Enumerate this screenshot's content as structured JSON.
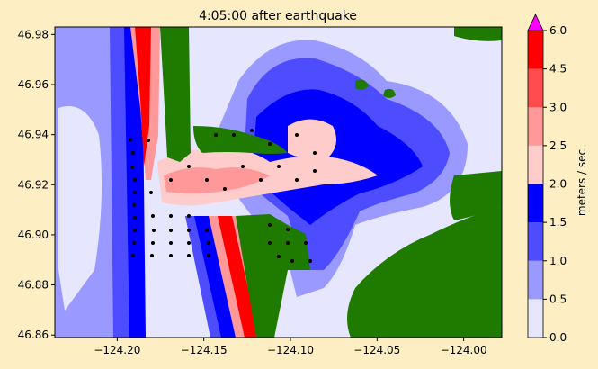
{
  "chart_data": {
    "type": "heatmap",
    "title": "4:05:00 after earthquake",
    "x_ticks": [
      -124.2,
      -124.15,
      -124.1,
      -124.05,
      -124.0
    ],
    "x_tick_labels": [
      "−124.20",
      "−124.15",
      "−124.10",
      "−124.05",
      "−124.00"
    ],
    "y_ticks": [
      46.86,
      46.88,
      46.9,
      46.92,
      46.94,
      46.96,
      46.98
    ],
    "y_tick_labels": [
      "46.86",
      "46.88",
      "46.90",
      "46.92",
      "46.94",
      "46.96",
      "46.98"
    ],
    "xlim": [
      -124.236,
      -123.978
    ],
    "ylim": [
      46.859,
      46.983
    ],
    "colorbar": {
      "label": "meters / sec",
      "bounds": [
        0.0,
        0.5,
        1.0,
        1.5,
        2.0,
        2.5,
        3.0,
        4.5,
        6.0
      ],
      "bound_labels": [
        "0.0",
        "0.5",
        "1.0",
        "1.5",
        "2.0",
        "2.5",
        "3.0",
        "4.5",
        "6.0"
      ],
      "colors": [
        "#e6e6ff",
        "#9999ff",
        "#4d4dff",
        "#0000ff",
        "#ffcccc",
        "#ff9999",
        "#ff4d4d",
        "#ff0000"
      ],
      "extend_max_color": "#ff00ff"
    },
    "land_color": "#1f7a00"
  }
}
